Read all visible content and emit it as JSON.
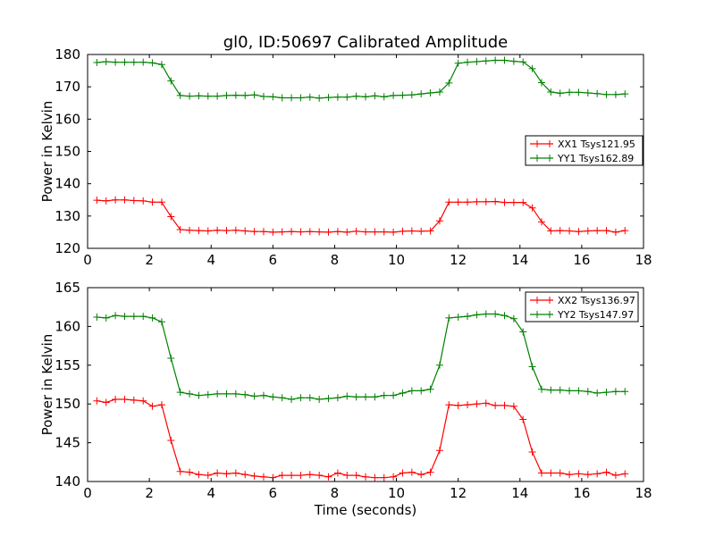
{
  "chart_data": [
    {
      "type": "line",
      "title": "gl0, ID:50697 Calibrated Amplitude",
      "xlabel": "",
      "ylabel": "Power in Kelvin",
      "xlim": [
        0,
        18
      ],
      "ylim": [
        120,
        180
      ],
      "xticks": [
        0,
        2,
        4,
        6,
        8,
        10,
        12,
        14,
        16,
        18
      ],
      "yticks": [
        120,
        130,
        140,
        150,
        160,
        170,
        180
      ],
      "grid": false,
      "legend_position": "center-right",
      "x": [
        0.3,
        0.6,
        0.9,
        1.2,
        1.5,
        1.8,
        2.1,
        2.4,
        2.7,
        3.0,
        3.3,
        3.6,
        3.9,
        4.2,
        4.5,
        4.8,
        5.1,
        5.4,
        5.7,
        6.0,
        6.3,
        6.6,
        6.9,
        7.2,
        7.5,
        7.8,
        8.1,
        8.4,
        8.7,
        9.0,
        9.3,
        9.6,
        9.9,
        10.2,
        10.5,
        10.8,
        11.1,
        11.4,
        11.7,
        12.0,
        12.3,
        12.6,
        12.9,
        13.2,
        13.5,
        13.8,
        14.1,
        14.4,
        14.7,
        15.0,
        15.3,
        15.6,
        15.9,
        16.2,
        16.5,
        16.8,
        17.1,
        17.4
      ],
      "series": [
        {
          "name": "XX1 Tsys121.95",
          "color": "#ff0000",
          "values": [
            134.9,
            134.7,
            135.0,
            135.0,
            134.8,
            134.7,
            134.3,
            134.3,
            129.8,
            125.8,
            125.6,
            125.5,
            125.4,
            125.6,
            125.5,
            125.6,
            125.4,
            125.2,
            125.2,
            125.0,
            125.1,
            125.2,
            125.1,
            125.2,
            125.1,
            125.0,
            125.2,
            125.0,
            125.3,
            125.1,
            125.1,
            125.1,
            125.0,
            125.3,
            125.4,
            125.3,
            125.4,
            128.5,
            134.3,
            134.3,
            134.3,
            134.4,
            134.4,
            134.5,
            134.2,
            134.2,
            134.2,
            132.5,
            128.2,
            125.4,
            125.5,
            125.4,
            125.2,
            125.4,
            125.5,
            125.5,
            125.0,
            125.5
          ]
        },
        {
          "name": "YY1 Tsys162.89",
          "color": "#008000",
          "values": [
            177.5,
            177.8,
            177.6,
            177.6,
            177.6,
            177.6,
            177.4,
            176.9,
            171.8,
            167.3,
            167.1,
            167.2,
            167.1,
            167.1,
            167.3,
            167.4,
            167.3,
            167.5,
            167.0,
            166.9,
            166.6,
            166.6,
            166.6,
            166.8,
            166.5,
            166.7,
            166.8,
            166.8,
            167.1,
            166.9,
            167.2,
            166.9,
            167.3,
            167.4,
            167.5,
            167.8,
            168.1,
            168.4,
            171.2,
            177.3,
            177.6,
            177.8,
            178.0,
            178.2,
            178.2,
            177.9,
            177.7,
            175.6,
            171.3,
            168.4,
            168.0,
            168.3,
            168.3,
            168.1,
            167.9,
            167.6,
            167.6,
            167.8
          ]
        }
      ]
    },
    {
      "type": "line",
      "title": "",
      "xlabel": "Time (seconds)",
      "ylabel": "Power in Kelvin",
      "xlim": [
        0,
        18
      ],
      "ylim": [
        140,
        165
      ],
      "xticks": [
        0,
        2,
        4,
        6,
        8,
        10,
        12,
        14,
        16,
        18
      ],
      "yticks": [
        140,
        145,
        150,
        155,
        160,
        165
      ],
      "grid": false,
      "legend_position": "top-right",
      "x": [
        0.3,
        0.6,
        0.9,
        1.2,
        1.5,
        1.8,
        2.1,
        2.4,
        2.7,
        3.0,
        3.3,
        3.6,
        3.9,
        4.2,
        4.5,
        4.8,
        5.1,
        5.4,
        5.7,
        6.0,
        6.3,
        6.6,
        6.9,
        7.2,
        7.5,
        7.8,
        8.1,
        8.4,
        8.7,
        9.0,
        9.3,
        9.6,
        9.9,
        10.2,
        10.5,
        10.8,
        11.1,
        11.4,
        11.7,
        12.0,
        12.3,
        12.6,
        12.9,
        13.2,
        13.5,
        13.8,
        14.1,
        14.4,
        14.7,
        15.0,
        15.3,
        15.6,
        15.9,
        16.2,
        16.5,
        16.8,
        17.1,
        17.4
      ],
      "series": [
        {
          "name": "XX2 Tsys136.97",
          "color": "#ff0000",
          "values": [
            150.4,
            150.2,
            150.6,
            150.6,
            150.5,
            150.4,
            149.7,
            149.9,
            145.3,
            141.3,
            141.2,
            140.9,
            140.8,
            141.1,
            141.0,
            141.1,
            140.9,
            140.7,
            140.6,
            140.5,
            140.8,
            140.8,
            140.8,
            140.9,
            140.8,
            140.6,
            141.1,
            140.8,
            140.8,
            140.6,
            140.5,
            140.5,
            140.6,
            141.1,
            141.2,
            140.9,
            141.2,
            144.0,
            149.9,
            149.8,
            149.9,
            150.0,
            150.1,
            149.8,
            149.8,
            149.7,
            148.0,
            143.8,
            141.1,
            141.1,
            141.1,
            140.9,
            141.0,
            140.9,
            141.0,
            141.2,
            140.8,
            141.0
          ]
        },
        {
          "name": "YY2 Tsys147.97",
          "color": "#008000",
          "values": [
            161.2,
            161.1,
            161.4,
            161.3,
            161.3,
            161.3,
            161.1,
            160.6,
            155.9,
            151.5,
            151.3,
            151.1,
            151.2,
            151.3,
            151.3,
            151.3,
            151.2,
            151.0,
            151.1,
            150.9,
            150.8,
            150.6,
            150.8,
            150.8,
            150.6,
            150.7,
            150.8,
            151.0,
            150.9,
            150.9,
            150.9,
            151.1,
            151.1,
            151.4,
            151.7,
            151.7,
            151.9,
            155.0,
            161.1,
            161.2,
            161.3,
            161.5,
            161.6,
            161.6,
            161.4,
            161.0,
            159.3,
            154.8,
            151.9,
            151.8,
            151.8,
            151.7,
            151.7,
            151.6,
            151.4,
            151.5,
            151.6,
            151.6
          ]
        }
      ]
    }
  ]
}
